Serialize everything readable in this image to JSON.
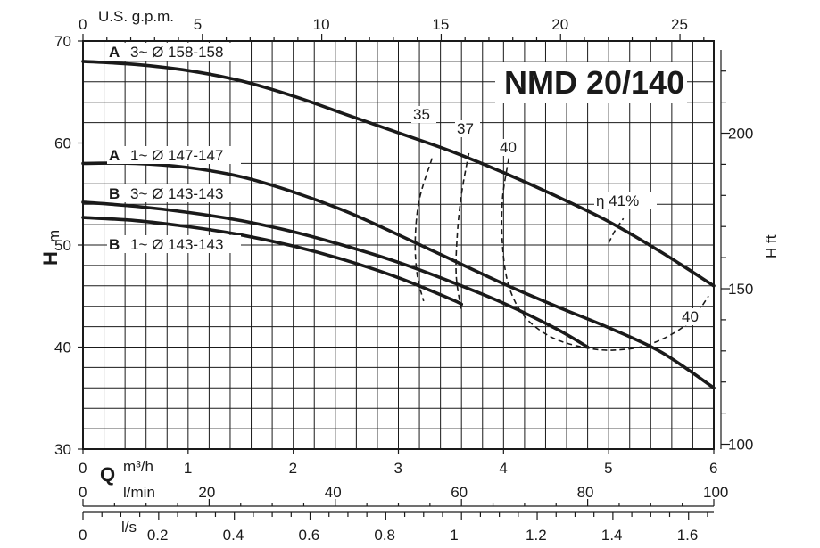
{
  "chart_data": {
    "type": "line",
    "title": "NMD 20/140",
    "x_primary": {
      "label": "Q",
      "unit": "m³/h",
      "range": [
        0,
        6
      ],
      "ticks": [
        "0",
        "1",
        "2",
        "3",
        "4",
        "5",
        "6"
      ]
    },
    "x_lmin": {
      "unit": "l/min",
      "ticks": [
        "0",
        "20",
        "40",
        "60",
        "80",
        "100"
      ],
      "tick_values": [
        0,
        20,
        40,
        60,
        80,
        100
      ]
    },
    "x_ls": {
      "unit": "l/s",
      "ticks": [
        "0",
        "0.2",
        "0.4",
        "0.6",
        "0.8",
        "1",
        "1.2",
        "1.4",
        "1.6"
      ],
      "tick_values": [
        0,
        0.2,
        0.4,
        0.6,
        0.8,
        1,
        1.2,
        1.4,
        1.6
      ]
    },
    "x_gpm": {
      "unit": "U.S. g.p.m.",
      "ticks": [
        "0",
        "5",
        "10",
        "15",
        "20",
        "25"
      ],
      "tick_values": [
        0,
        5,
        10,
        15,
        20,
        25
      ]
    },
    "y_primary": {
      "label": "H",
      "unit": "m",
      "range": [
        30,
        70
      ],
      "ticks": [
        "30",
        "40",
        "50",
        "60",
        "70"
      ]
    },
    "y_ft": {
      "label": "H ft",
      "ticks": [
        "100",
        "150",
        "200"
      ],
      "tick_values": [
        100,
        150,
        200
      ]
    },
    "grid": true,
    "series": [
      {
        "name": "A 3~ Ø 158-158",
        "label_head": "A",
        "label_rest": "3~ Ø 158-158",
        "x": [
          0,
          0.5,
          1,
          1.5,
          2,
          2.5,
          3,
          3.5,
          4,
          4.5,
          5,
          5.5,
          6
        ],
        "y": [
          68,
          67.7,
          67.1,
          66.1,
          64.6,
          62.8,
          61.0,
          59.2,
          57.1,
          54.8,
          52.3,
          49.3,
          46.0
        ]
      },
      {
        "name": "A 1~ Ø 147-147",
        "label_head": "A",
        "label_rest": "1~ Ø 147-147",
        "x": [
          0,
          0.5,
          1,
          1.5,
          2,
          2.5,
          3,
          3.5,
          4,
          4.5,
          5,
          5.5,
          6
        ],
        "y": [
          58,
          58,
          57.6,
          56.7,
          55.2,
          53.3,
          51.0,
          48.6,
          46.2,
          44.0,
          41.9,
          39.5,
          36.0
        ]
      },
      {
        "name": "B 3~ Ø 143-143",
        "label_head": "B",
        "label_rest": "3~ Ø 143-143",
        "x": [
          0,
          0.5,
          1,
          1.5,
          2,
          2.5,
          3,
          3.5,
          4,
          4.5,
          4.8
        ],
        "y": [
          54.2,
          53.8,
          53.2,
          52.4,
          51.3,
          49.9,
          48.3,
          46.4,
          44.3,
          41.8,
          40.0
        ]
      },
      {
        "name": "B 1~ Ø 143-143",
        "label_head": "B",
        "label_rest": "1~ Ø 143-143",
        "x": [
          0,
          0.5,
          1,
          1.5,
          2,
          2.5,
          3,
          3.5,
          3.6
        ],
        "y": [
          52.7,
          52.4,
          51.8,
          51.0,
          49.9,
          48.5,
          46.8,
          44.7,
          44.2
        ]
      }
    ],
    "efficiency_curves": [
      {
        "label": "35",
        "x": [
          3.32,
          3.2,
          3.16,
          3.18,
          3.24
        ],
        "y": [
          58.5,
          54.5,
          50.5,
          47.0,
          44.5
        ]
      },
      {
        "label": "37",
        "x": [
          3.67,
          3.6,
          3.56,
          3.55,
          3.6
        ],
        "y": [
          59.0,
          55.0,
          51.0,
          47.0,
          43.5
        ]
      },
      {
        "label": "40",
        "x": [
          4.05,
          3.99,
          3.99,
          4.05,
          4.2,
          4.45,
          4.75,
          5.05,
          5.4,
          5.75,
          5.95
        ],
        "y": [
          58.5,
          54.5,
          50.0,
          46.0,
          43.0,
          41.0,
          40.0,
          39.7,
          40.3,
          42.3,
          45.0
        ]
      },
      {
        "label": "η 41%",
        "x": [
          5.0,
          5.06,
          5.14
        ],
        "y": [
          50.2,
          51.4,
          52.6
        ]
      }
    ],
    "efficiency_label_40_right": "40"
  }
}
